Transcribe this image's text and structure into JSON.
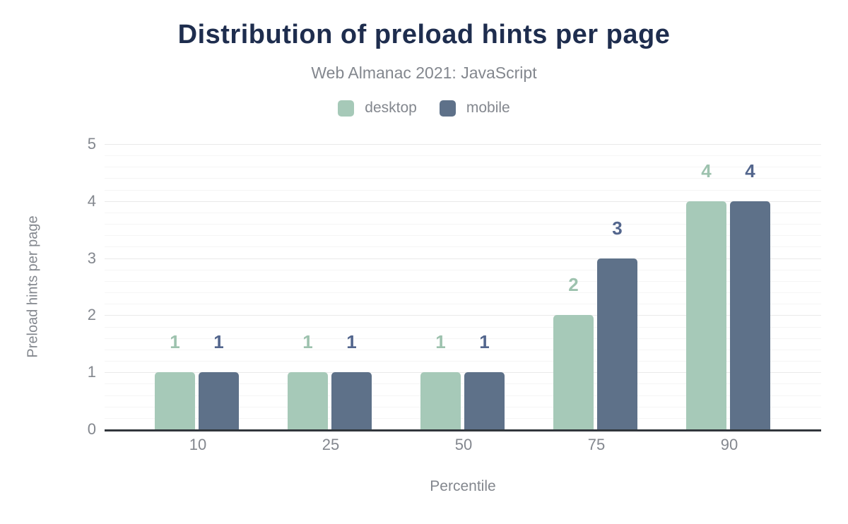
{
  "header": {
    "title": "Distribution of preload hints per page",
    "subtitle": "Web Almanac 2021: JavaScript"
  },
  "legend": {
    "items": [
      {
        "label": "desktop",
        "color": "#a6c9b8"
      },
      {
        "label": "mobile",
        "color": "#5e7189"
      }
    ]
  },
  "axes": {
    "x": {
      "title": "Percentile",
      "ticks": [
        "10",
        "25",
        "50",
        "75",
        "90"
      ]
    },
    "y": {
      "title": "Preload hints per page",
      "ticks": [
        "0",
        "1",
        "2",
        "3",
        "4",
        "5"
      ]
    }
  },
  "chart_data": {
    "type": "bar",
    "title": "Distribution of preload hints per page",
    "subtitle": "Web Almanac 2021: JavaScript",
    "categories": [
      "10",
      "25",
      "50",
      "75",
      "90"
    ],
    "series": [
      {
        "name": "desktop",
        "color": "#a6c9b8",
        "label_color": "#9dc2ae",
        "values": [
          1,
          1,
          1,
          2,
          4
        ]
      },
      {
        "name": "mobile",
        "color": "#5e7189",
        "label_color": "#53668d",
        "values": [
          1,
          1,
          1,
          3,
          4
        ]
      }
    ],
    "xlabel": "Percentile",
    "ylabel": "Preload hints per page",
    "ylim": [
      0,
      5
    ],
    "yticks": [
      0,
      1,
      2,
      3,
      4,
      5
    ],
    "minor_grid_step": 0.2,
    "grid": "horizontal",
    "legend_position": "top",
    "data_labels": true
  },
  "colors": {
    "background": "#ffffff",
    "title_text": "#1e2d4e",
    "muted_text": "#83878e",
    "baseline": "#31363c",
    "major_grid": "#e9e9e9",
    "minor_grid": "#f5f5f5"
  }
}
